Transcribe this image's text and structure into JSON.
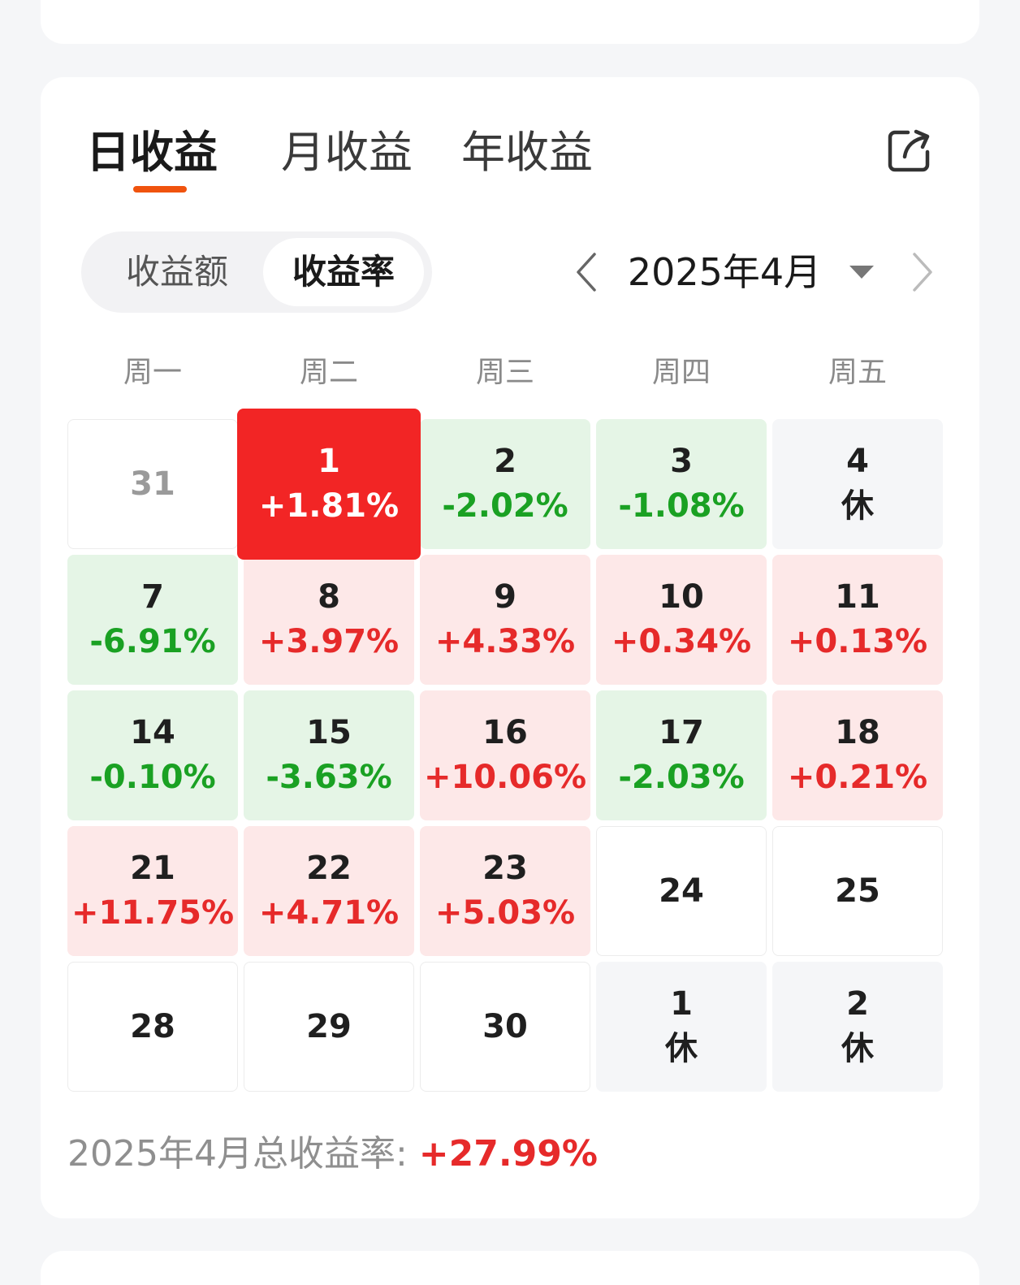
{
  "tabs": [
    {
      "label": "日收益",
      "active": true
    },
    {
      "label": "月收益",
      "active": false
    },
    {
      "label": "年收益",
      "active": false
    }
  ],
  "toggle": {
    "amount_label": "收益额",
    "rate_label": "收益率",
    "selected": "收益率"
  },
  "month_nav": {
    "label": "2025年4月"
  },
  "weekdays": [
    "周一",
    "周二",
    "周三",
    "周四",
    "周五"
  ],
  "calendar": [
    [
      {
        "day": "31",
        "value": "",
        "type": "prevm"
      },
      {
        "day": "1",
        "value": "+1.81%",
        "type": "selected"
      },
      {
        "day": "2",
        "value": "-2.02%",
        "type": "down"
      },
      {
        "day": "3",
        "value": "-1.08%",
        "type": "down"
      },
      {
        "day": "4",
        "value": "休",
        "type": "rest"
      }
    ],
    [
      {
        "day": "7",
        "value": "-6.91%",
        "type": "down"
      },
      {
        "day": "8",
        "value": "+3.97%",
        "type": "up"
      },
      {
        "day": "9",
        "value": "+4.33%",
        "type": "up"
      },
      {
        "day": "10",
        "value": "+0.34%",
        "type": "up"
      },
      {
        "day": "11",
        "value": "+0.13%",
        "type": "up"
      }
    ],
    [
      {
        "day": "14",
        "value": "-0.10%",
        "type": "down"
      },
      {
        "day": "15",
        "value": "-3.63%",
        "type": "down"
      },
      {
        "day": "16",
        "value": "+10.06%",
        "type": "up"
      },
      {
        "day": "17",
        "value": "-2.03%",
        "type": "down"
      },
      {
        "day": "18",
        "value": "+0.21%",
        "type": "up"
      }
    ],
    [
      {
        "day": "21",
        "value": "+11.75%",
        "type": "up"
      },
      {
        "day": "22",
        "value": "+4.71%",
        "type": "up"
      },
      {
        "day": "23",
        "value": "+5.03%",
        "type": "up"
      },
      {
        "day": "24",
        "value": "",
        "type": "plain"
      },
      {
        "day": "25",
        "value": "",
        "type": "plain"
      }
    ],
    [
      {
        "day": "28",
        "value": "",
        "type": "plain"
      },
      {
        "day": "29",
        "value": "",
        "type": "plain"
      },
      {
        "day": "30",
        "value": "",
        "type": "plain"
      },
      {
        "day": "1",
        "value": "休",
        "type": "rest"
      },
      {
        "day": "2",
        "value": "休",
        "type": "rest"
      }
    ]
  ],
  "total": {
    "label": "2025年4月总收益率: ",
    "value": "+27.99%"
  },
  "icons": {
    "share": "share-icon",
    "prev": "chevron-left-icon",
    "next": "chevron-right-icon",
    "caret": "caret-down-icon"
  },
  "colors": {
    "accent": "#f0530e",
    "up": "#e62a2a",
    "down": "#1aa123",
    "selected_bg": "#f22525",
    "up_bg": "#fde8e8",
    "down_bg": "#e5f5e6"
  }
}
